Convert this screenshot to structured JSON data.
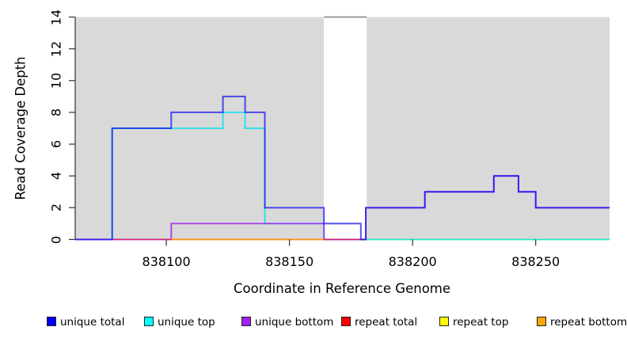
{
  "chart_data": {
    "type": "line",
    "subtype": "step-coverage-plot",
    "title": "",
    "xlabel": "Coordinate in Reference Genome",
    "ylabel": "Read Coverage Depth",
    "xlim": [
      838063,
      838280
    ],
    "ylim": [
      0,
      14
    ],
    "grid": false,
    "x_ticks": [
      838100,
      838150,
      838200,
      838250
    ],
    "x_tick_labels": [
      "838100",
      "838150",
      "838200",
      "838250"
    ],
    "y_ticks": [
      0,
      2,
      4,
      6,
      8,
      10,
      12,
      14
    ],
    "y_tick_labels": [
      "0",
      "2",
      "4",
      "6",
      "8",
      "10",
      "12",
      "14"
    ],
    "plot_bg_color": "#d9d9d9",
    "gap_band": {
      "x_start": 838164,
      "x_end": 838181,
      "color": "#ffffff",
      "note": "white vertical band (repeat region) spanning full plot height"
    },
    "clipped_top_segment": {
      "x_start": 838164,
      "x_end": 838181,
      "y": 14,
      "color": "#999999",
      "note": "gray line along top of white band"
    },
    "series": [
      {
        "name": "repeat top",
        "color": "#ffff00",
        "render_color": "rgba(255,255,0,0.9)",
        "width": 1.6,
        "points": [
          [
            838164,
            0
          ],
          [
            838280,
            0
          ]
        ]
      },
      {
        "name": "unique top",
        "color": "#00ffff",
        "render_color": "rgba(0,225,235,0.85)",
        "width": 1.8,
        "points": [
          [
            838078,
            0
          ],
          [
            838078,
            7
          ],
          [
            838123,
            7
          ],
          [
            838123,
            8
          ],
          [
            838132,
            8
          ],
          [
            838132,
            7
          ],
          [
            838140,
            7
          ],
          [
            838140,
            1
          ],
          [
            838164,
            1
          ],
          [
            838164,
            0
          ],
          [
            838280,
            0
          ]
        ]
      },
      {
        "name": "unique bottom",
        "color": "#a020f0",
        "render_color": "rgba(160,32,240,0.85)",
        "width": 1.8,
        "points": [
          [
            838063,
            0
          ],
          [
            838102,
            0
          ],
          [
            838102,
            1
          ],
          [
            838164,
            1
          ],
          [
            838164,
            0
          ],
          [
            838181,
            0
          ],
          [
            838181,
            2
          ],
          [
            838205,
            2
          ],
          [
            838205,
            3
          ],
          [
            838233,
            3
          ],
          [
            838233,
            4
          ],
          [
            838243,
            4
          ],
          [
            838243,
            3
          ],
          [
            838250,
            3
          ],
          [
            838250,
            2
          ],
          [
            838280,
            2
          ]
        ]
      },
      {
        "name": "repeat total",
        "color": "#ff0000",
        "render_color": "rgba(235,25,70,0.75)",
        "width": 1.6,
        "points": [
          [
            838078,
            0
          ],
          [
            838181,
            0
          ]
        ]
      },
      {
        "name": "repeat bottom",
        "color": "#ffa500",
        "render_color": "rgba(255,150,10,0.95)",
        "width": 1.8,
        "points": [
          [
            838102,
            0
          ],
          [
            838164,
            0
          ]
        ]
      },
      {
        "name": "unique total",
        "color": "#0000ff",
        "render_color": "rgba(15,10,235,0.7)",
        "width": 2.0,
        "points": [
          [
            838063,
            0
          ],
          [
            838078,
            0
          ],
          [
            838078,
            7
          ],
          [
            838102,
            7
          ],
          [
            838102,
            8
          ],
          [
            838123,
            8
          ],
          [
            838123,
            9
          ],
          [
            838132,
            9
          ],
          [
            838132,
            8
          ],
          [
            838140,
            8
          ],
          [
            838140,
            2
          ],
          [
            838164,
            2
          ],
          [
            838164,
            1
          ],
          [
            838179,
            1
          ],
          [
            838179,
            0
          ],
          [
            838181,
            0
          ],
          [
            838181,
            2
          ],
          [
            838205,
            2
          ],
          [
            838205,
            3
          ],
          [
            838233,
            3
          ],
          [
            838233,
            4
          ],
          [
            838243,
            4
          ],
          [
            838243,
            3
          ],
          [
            838250,
            3
          ],
          [
            838250,
            2
          ],
          [
            838280,
            2
          ]
        ]
      }
    ],
    "legend_position": "bottom",
    "legend": [
      {
        "label": "unique total",
        "color": "#0000ff"
      },
      {
        "label": "unique top",
        "color": "#00ffff"
      },
      {
        "label": "unique bottom",
        "color": "#a020f0"
      },
      {
        "label": "repeat total",
        "color": "#ff0000"
      },
      {
        "label": "repeat top",
        "color": "#ffff00"
      },
      {
        "label": "repeat bottom",
        "color": "#ffa500"
      }
    ]
  },
  "labels": {
    "xlabel": "Coordinate in Reference Genome",
    "ylabel": "Read Coverage Depth"
  }
}
